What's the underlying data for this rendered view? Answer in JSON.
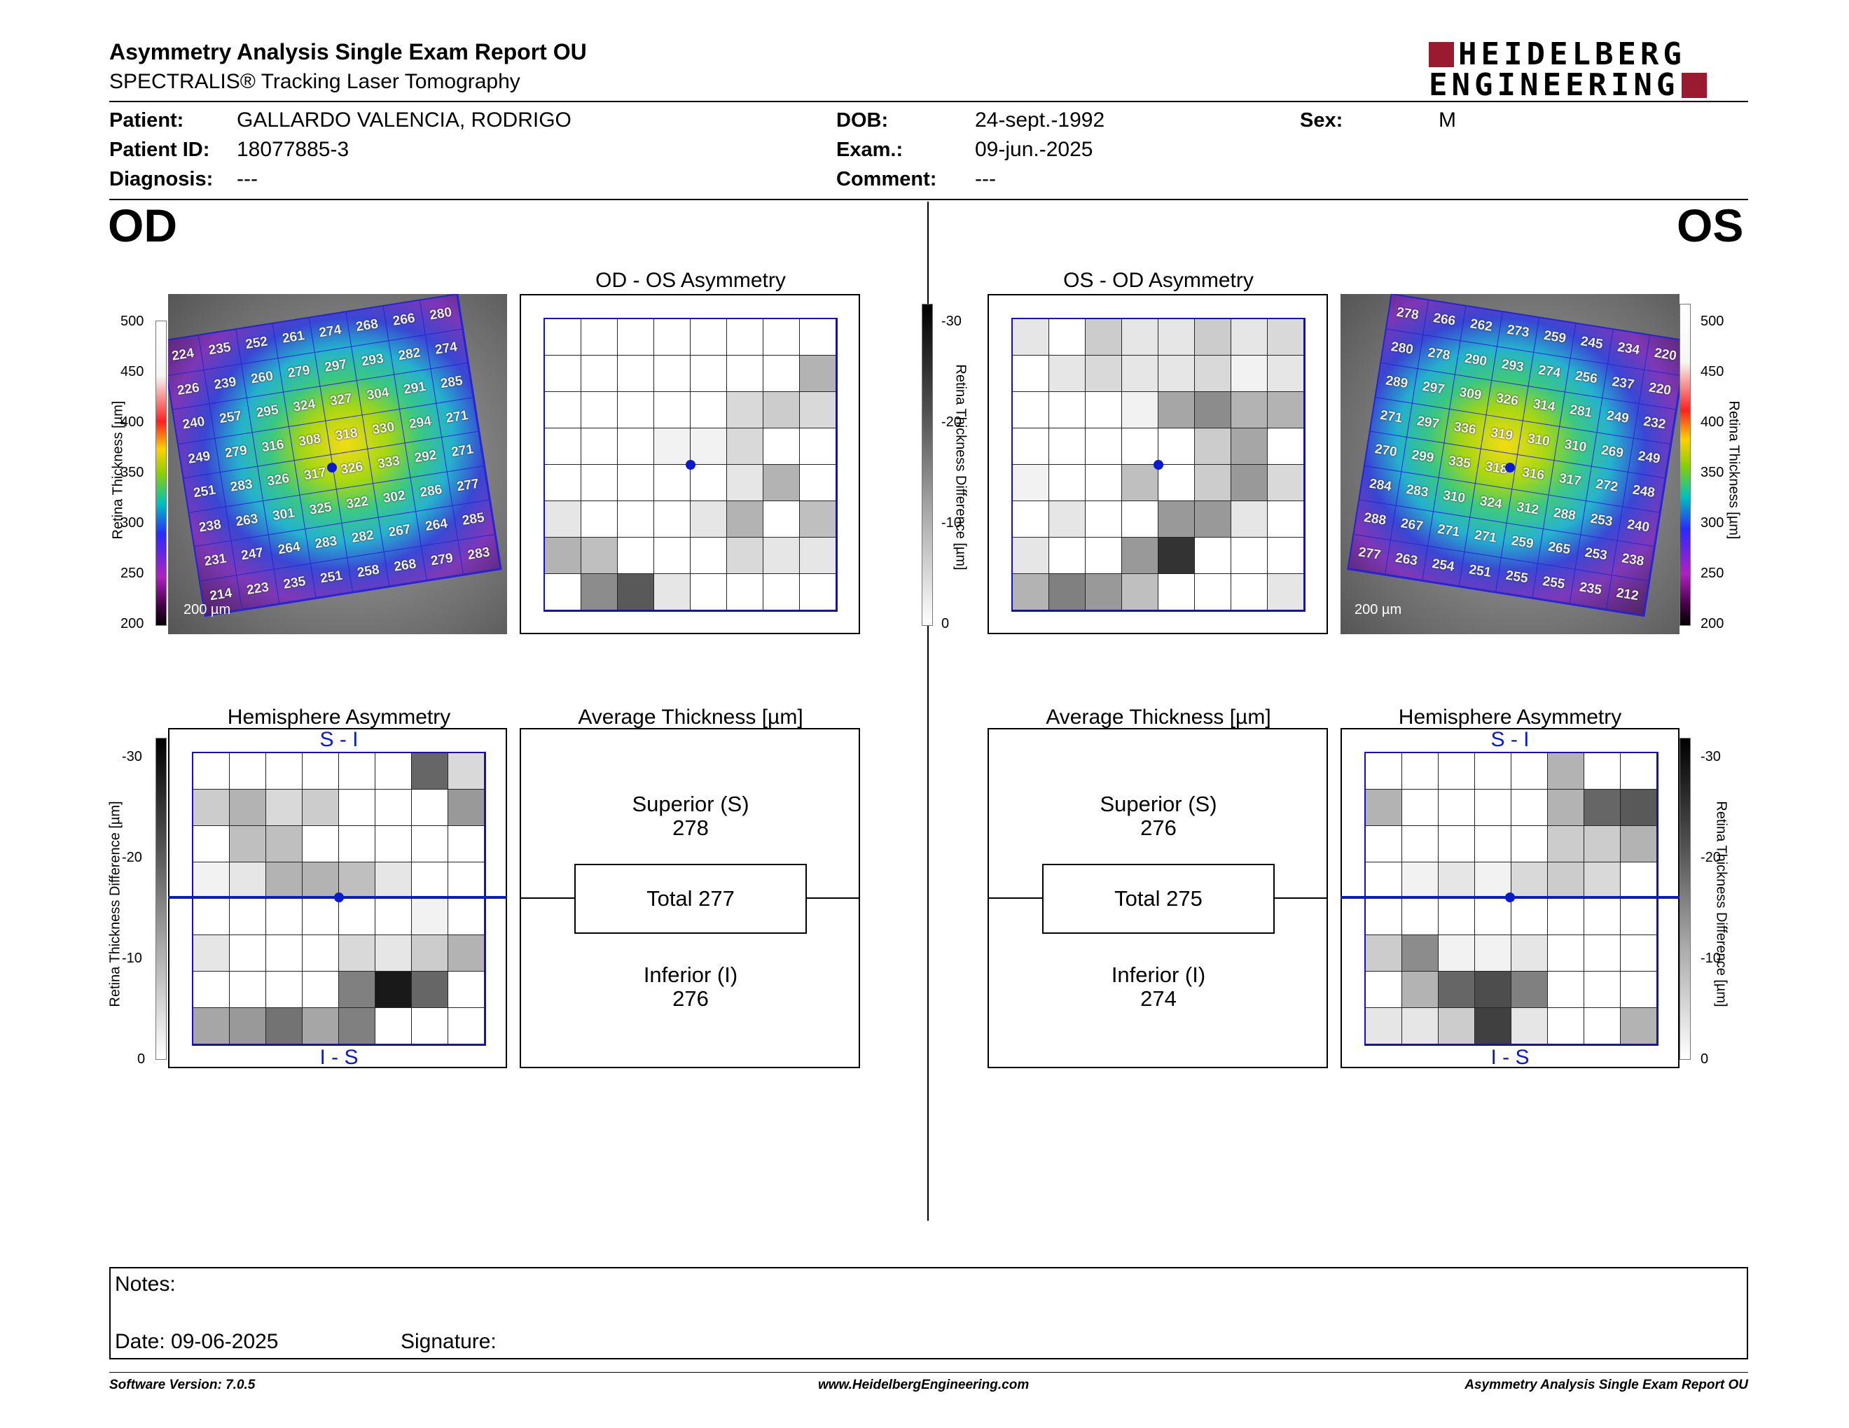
{
  "header": {
    "title": "Asymmetry Analysis Single Exam Report OU",
    "subtitle": "SPECTRALIS® Tracking Laser Tomography",
    "logo_line1": "HEIDELBERG",
    "logo_line2": "ENGINEERING",
    "brand_color": "#9a1b2f"
  },
  "patient": {
    "patient_label": "Patient:",
    "patient_value": "GALLARDO VALENCIA, RODRIGO",
    "id_label": "Patient ID:",
    "id_value": "18077885-3",
    "diagnosis_label": "Diagnosis:",
    "diagnosis_value": "---",
    "dob_label": "DOB:",
    "dob_value": "24-sept.-1992",
    "exam_label": "Exam.:",
    "exam_value": "09-jun.-2025",
    "comment_label": "Comment:",
    "comment_value": "---",
    "sex_label": "Sex:",
    "sex_value": "M"
  },
  "od": {
    "eye_label": "OD",
    "asym_title": "OD - OS Asymmetry",
    "hemi_title": "Hemisphere Asymmetry",
    "avg_title": "Average Thickness [µm]",
    "superior_label": "Superior (S)",
    "superior_value": "278",
    "total_text": "Total 277",
    "inferior_label": "Inferior (I)",
    "inferior_value": "276",
    "scale_bar": "200 µm",
    "thickness": [
      [
        224,
        235,
        252,
        261,
        274,
        268,
        266,
        280
      ],
      [
        226,
        239,
        260,
        279,
        297,
        293,
        282,
        274
      ],
      [
        240,
        257,
        295,
        324,
        327,
        304,
        291,
        285
      ],
      [
        249,
        279,
        316,
        308,
        318,
        330,
        294,
        271
      ],
      [
        251,
        283,
        326,
        317,
        326,
        333,
        292,
        271
      ],
      [
        238,
        263,
        301,
        325,
        322,
        302,
        286,
        277
      ],
      [
        231,
        247,
        264,
        283,
        282,
        267,
        264,
        285
      ],
      [
        214,
        223,
        235,
        251,
        258,
        268,
        279,
        283
      ]
    ],
    "asym_gray": [
      [
        0,
        0,
        0,
        0,
        0,
        0,
        0,
        0
      ],
      [
        0,
        0,
        0,
        0,
        0,
        0,
        0,
        0.3
      ],
      [
        0,
        0,
        0,
        0,
        0,
        0.15,
        0.2,
        0.15
      ],
      [
        0,
        0,
        0,
        0.05,
        0.05,
        0.15,
        0,
        0
      ],
      [
        0,
        0,
        0,
        0,
        0,
        0.1,
        0.3,
        0
      ],
      [
        0.1,
        0,
        0,
        0,
        0.1,
        0.3,
        0,
        0.25
      ],
      [
        0.3,
        0.25,
        0,
        0,
        0,
        0.15,
        0.1,
        0.1
      ],
      [
        0,
        0.45,
        0.65,
        0.1,
        0,
        0,
        0,
        0
      ]
    ],
    "hemi_gray": [
      [
        0,
        0,
        0,
        0,
        0,
        0,
        0.6,
        0.15
      ],
      [
        0.2,
        0.3,
        0.15,
        0.2,
        0,
        0,
        0,
        0.4
      ],
      [
        0,
        0.25,
        0.25,
        0,
        0,
        0,
        0,
        0
      ],
      [
        0.05,
        0.1,
        0.3,
        0.3,
        0.25,
        0.1,
        0,
        0
      ],
      [
        0,
        0,
        0,
        0,
        0,
        0,
        0.05,
        0
      ],
      [
        0.1,
        0,
        0,
        0,
        0.15,
        0.1,
        0.2,
        0.3
      ],
      [
        0,
        0,
        0,
        0,
        0.5,
        0.9,
        0.6,
        0
      ],
      [
        0.35,
        0.4,
        0.55,
        0.35,
        0.5,
        0,
        0,
        0
      ]
    ]
  },
  "os": {
    "eye_label": "OS",
    "asym_title": "OS - OD Asymmetry",
    "hemi_title": "Hemisphere Asymmetry",
    "avg_title": "Average Thickness [µm]",
    "superior_label": "Superior (S)",
    "superior_value": "276",
    "total_text": "Total 275",
    "inferior_label": "Inferior (I)",
    "inferior_value": "274",
    "scale_bar": "200 µm",
    "thickness": [
      [
        278,
        266,
        262,
        273,
        259,
        245,
        234,
        220
      ],
      [
        280,
        278,
        290,
        293,
        274,
        256,
        237,
        220
      ],
      [
        289,
        297,
        309,
        326,
        314,
        281,
        249,
        232
      ],
      [
        271,
        297,
        336,
        319,
        310,
        310,
        269,
        249
      ],
      [
        270,
        299,
        335,
        318,
        316,
        317,
        272,
        248
      ],
      [
        284,
        283,
        310,
        324,
        312,
        288,
        253,
        240
      ],
      [
        288,
        267,
        271,
        271,
        259,
        265,
        253,
        238
      ],
      [
        277,
        263,
        254,
        251,
        255,
        255,
        235,
        212
      ]
    ],
    "asym_gray": [
      [
        0.1,
        0,
        0.2,
        0.1,
        0.1,
        0.2,
        0.1,
        0.15
      ],
      [
        0,
        0.1,
        0.15,
        0.1,
        0.1,
        0.15,
        0.05,
        0.1
      ],
      [
        0,
        0,
        0,
        0.05,
        0.35,
        0.45,
        0.3,
        0.3
      ],
      [
        0,
        0,
        0,
        0,
        0,
        0.2,
        0.35,
        0
      ],
      [
        0.05,
        0,
        0,
        0.25,
        0,
        0.2,
        0.4,
        0.15
      ],
      [
        0,
        0.1,
        0,
        0,
        0.4,
        0.4,
        0.1,
        0
      ],
      [
        0.1,
        0,
        0,
        0.4,
        0.8,
        0,
        0,
        0
      ],
      [
        0.3,
        0.5,
        0.4,
        0.25,
        0,
        0,
        0,
        0.1
      ]
    ],
    "hemi_gray": [
      [
        0,
        0,
        0,
        0,
        0,
        0.3,
        0,
        0
      ],
      [
        0.3,
        0,
        0,
        0,
        0,
        0.3,
        0.6,
        0.65
      ],
      [
        0,
        0,
        0,
        0,
        0,
        0.2,
        0.2,
        0.3
      ],
      [
        0,
        0.05,
        0.1,
        0.05,
        0.15,
        0.2,
        0.15,
        0
      ],
      [
        0,
        0,
        0,
        0,
        0,
        0,
        0,
        0
      ],
      [
        0.2,
        0.45,
        0.05,
        0.05,
        0.1,
        0,
        0,
        0
      ],
      [
        0,
        0.3,
        0.6,
        0.7,
        0.5,
        0,
        0,
        0
      ],
      [
        0.1,
        0.1,
        0.2,
        0.75,
        0.1,
        0,
        0,
        0.3
      ]
    ]
  },
  "legend": {
    "thickness_axis": "Retina Thickness [µm]",
    "thickness_ticks": [
      "500",
      "450",
      "400",
      "350",
      "300",
      "250",
      "200"
    ],
    "diff_axis": "Retina Thickness Difference [µm]",
    "diff_ticks": [
      "-30",
      "-20",
      "-10",
      "0"
    ],
    "s_i": "S - I",
    "i_s": "I - S"
  },
  "notes": {
    "notes_label": "Notes:",
    "date_text": "Date: 09-06-2025",
    "signature_label": "Signature:"
  },
  "footer": {
    "software": "Software Version: 7.0.5",
    "website": "www.HeidelbergEngineering.com",
    "report": "Asymmetry Analysis Single Exam Report OU"
  }
}
